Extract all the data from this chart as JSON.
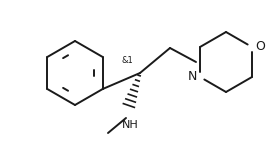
{
  "background_color": "#ffffff",
  "line_color": "#1a1a1a",
  "line_width": 1.4,
  "font_size_label": 8.0,
  "font_size_stereo": 6.0,
  "stereo_label": "&1",
  "N_label": "N",
  "O_label": "O",
  "NH_text": "NH"
}
